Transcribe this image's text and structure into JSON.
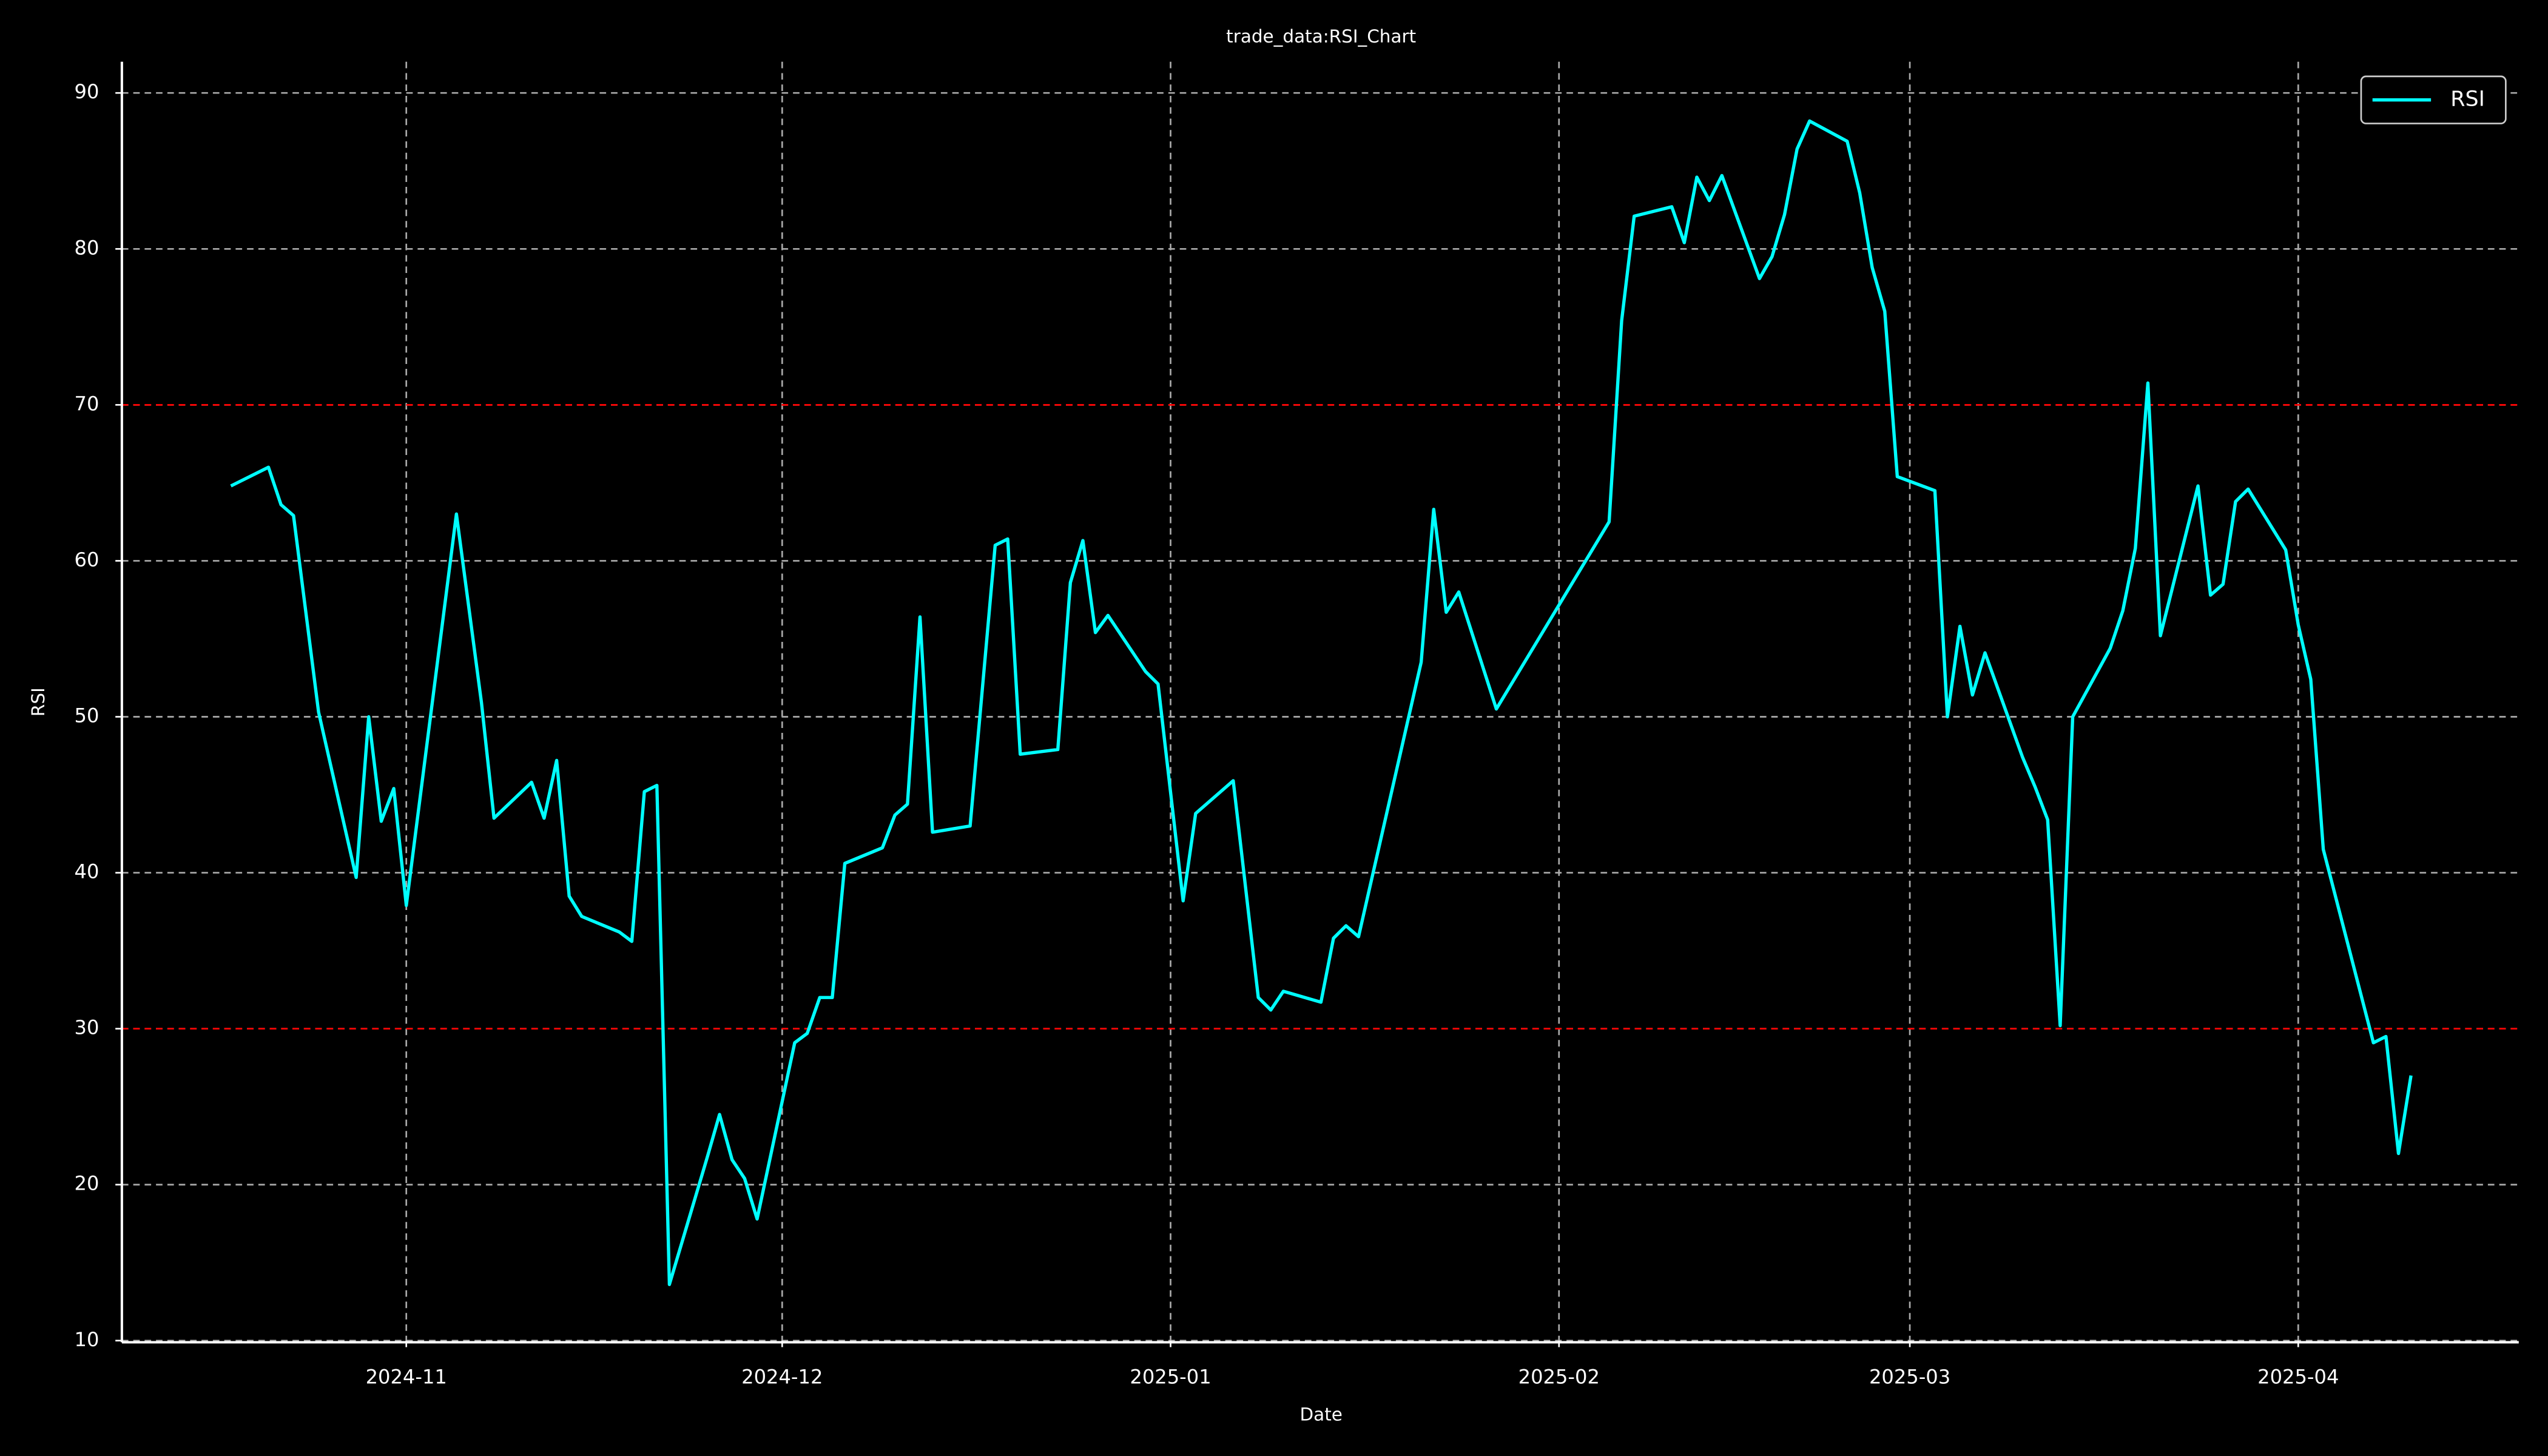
{
  "chart_data": {
    "type": "line",
    "title": "trade_data:RSI_Chart",
    "xlabel": "Date",
    "ylabel": "RSI",
    "x": [
      20014,
      20017,
      20018,
      20019,
      20021,
      20024,
      20025,
      20026,
      20027,
      20028,
      20032,
      20034,
      20035,
      20038,
      20039,
      20040,
      20041,
      20042,
      20045,
      20046,
      20047,
      20048,
      20049,
      20052,
      20053,
      20054,
      20055,
      20056,
      20059,
      20060,
      20061,
      20062,
      20063,
      20066,
      20067,
      20068,
      20069,
      20070,
      20073,
      20075,
      20076,
      20077,
      20080,
      20081,
      20082,
      20083,
      20084,
      20087,
      20088,
      20090,
      20091,
      20094,
      20096,
      20097,
      20098,
      20101,
      20102,
      20103,
      20104,
      20109,
      20110,
      20111,
      20112,
      20115,
      20124,
      20125,
      20126,
      20129,
      20130,
      20131,
      20132,
      20133,
      20136,
      20137,
      20138,
      20139,
      20140,
      20143,
      20144,
      20145,
      20146,
      20147,
      20150,
      20151,
      20152,
      20153,
      20154,
      20157,
      20158,
      20159,
      20160,
      20161,
      20164,
      20165,
      20166,
      20167,
      20168,
      20171,
      20172,
      20173,
      20174,
      20175,
      20178,
      20179,
      20180,
      20181,
      20185,
      20186,
      20187,
      20188
    ],
    "series": [
      {
        "name": "RSI",
        "color": "#00ffff",
        "values": [
          64.8,
          66.0,
          63.6,
          62.9,
          50.3,
          39.7,
          50.0,
          43.3,
          45.4,
          37.9,
          63.0,
          50.9,
          43.5,
          45.8,
          43.5,
          47.2,
          38.5,
          37.2,
          36.2,
          35.6,
          45.2,
          45.6,
          13.6,
          21.7,
          24.5,
          21.6,
          20.4,
          17.8,
          29.1,
          29.7,
          32.0,
          32.0,
          40.6,
          41.6,
          43.7,
          44.4,
          56.4,
          42.6,
          43.0,
          61.0,
          61.4,
          47.6,
          47.9,
          58.6,
          61.3,
          55.4,
          56.5,
          52.9,
          52.1,
          38.2,
          43.8,
          45.9,
          32.0,
          31.2,
          32.4,
          31.7,
          35.8,
          36.6,
          35.9,
          53.5,
          63.3,
          56.7,
          58.0,
          50.5,
          62.5,
          75.4,
          82.1,
          82.7,
          80.4,
          84.6,
          83.1,
          84.7,
          78.1,
          79.5,
          82.2,
          86.4,
          88.2,
          86.9,
          83.6,
          78.8,
          76.0,
          65.4,
          64.5,
          50.0,
          55.8,
          51.4,
          54.1,
          47.4,
          45.5,
          43.4,
          30.2,
          50.0,
          54.4,
          56.8,
          60.8,
          71.4,
          55.2,
          64.8,
          57.8,
          58.5,
          63.8,
          64.6,
          60.7,
          55.9,
          52.4,
          41.5,
          29.1,
          29.5,
          22.0,
          27.0
        ]
      }
    ],
    "xlim": [
      20005.3,
      20196.6
    ],
    "ylim": [
      10,
      92
    ],
    "xticks": [
      {
        "value": 20028,
        "label": "2024-11"
      },
      {
        "value": 20058,
        "label": "2024-12"
      },
      {
        "value": 20089,
        "label": "2025-01"
      },
      {
        "value": 20120,
        "label": "2025-02"
      },
      {
        "value": 20148,
        "label": "2025-03"
      },
      {
        "value": 20179,
        "label": "2025-04"
      }
    ],
    "yticks": [
      10,
      20,
      30,
      40,
      50,
      60,
      70,
      80,
      90
    ],
    "hlines": [
      70,
      30
    ],
    "hline_color": "#ff0000",
    "grid": true,
    "legend": "upper right"
  }
}
